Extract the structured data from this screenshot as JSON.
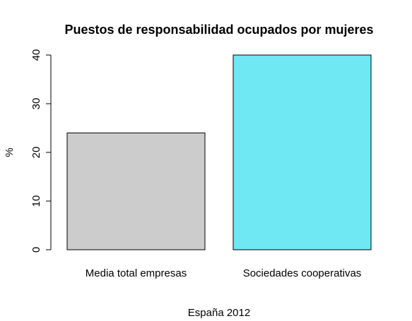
{
  "chart_data": {
    "type": "bar",
    "title": "Puestos de responsabilidad ocupados por mujeres",
    "xlabel": "España 2012",
    "ylabel": "%",
    "categories": [
      "Media total empresas",
      "Sociedades cooperativas"
    ],
    "values": [
      24,
      40
    ],
    "colors": [
      "#cccccc",
      "#6fe8f4"
    ],
    "yticks": [
      0,
      10,
      20,
      30,
      40
    ],
    "ylim": [
      0,
      40
    ],
    "grid": false,
    "legend": "none"
  }
}
